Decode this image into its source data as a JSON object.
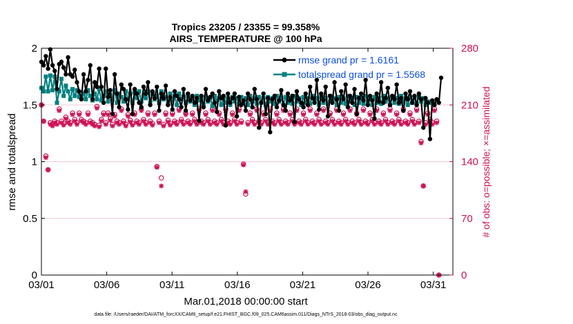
{
  "chart_data": {
    "type": "line",
    "title": "Tropics 23205 / 23355 = 99.358%",
    "subtitle": "AIRS_TEMPERATURE @ 100 hPa",
    "xlabel": "Mar.01,2018 00:00:00 start",
    "ylabel": "rmse and totalspread",
    "y2label": "# of obs: o=possible; ×=assimilated",
    "x_tick_labels": [
      "03/01",
      "03/06",
      "03/11",
      "03/16",
      "03/21",
      "03/26",
      "03/31"
    ],
    "x_ticks": [
      0,
      5,
      10,
      15,
      20,
      25,
      30
    ],
    "xlim": [
      0,
      31.5
    ],
    "ylim": [
      0,
      2
    ],
    "y_ticks": [
      "0",
      "0.5",
      "1",
      "1.5",
      "2"
    ],
    "y2lim": [
      0,
      280
    ],
    "y2_ticks": [
      "0",
      "70",
      "140",
      "210",
      "280"
    ],
    "footer": "data file: /Users/raeder/DAI/ATM_forcXX/CAM6_setup/f.e21.FHIST_BGC.f09_025.CAM6assim.011/Diags_NTrS_2018-03/obs_diag_output.nc",
    "colors": {
      "rmse": "#000000",
      "spread": "#008080",
      "obs": "#cc1155",
      "legend_text": "#0a4fe0"
    },
    "series": [
      {
        "name": "rmse grand pr = 1.6161",
        "axis": "left",
        "values": [
          1.88,
          1.85,
          1.93,
          1.82,
          1.99,
          1.85,
          1.8,
          1.64,
          1.86,
          1.88,
          1.83,
          1.77,
          1.92,
          1.77,
          1.75,
          1.81,
          1.7,
          1.62,
          1.55,
          1.77,
          1.62,
          1.72,
          1.85,
          1.55,
          1.7,
          1.66,
          1.82,
          1.66,
          1.52,
          1.82,
          1.57,
          1.63,
          1.42,
          1.77,
          1.6,
          1.48,
          1.68,
          1.64,
          1.55,
          1.46,
          1.68,
          1.42,
          1.64,
          1.6,
          1.52,
          1.48,
          1.66,
          1.6,
          1.7,
          1.5,
          1.62,
          1.56,
          1.66,
          1.45,
          1.6,
          1.56,
          1.67,
          1.5,
          1.57,
          1.46,
          1.62,
          1.58,
          1.55,
          1.48,
          1.64,
          1.45,
          1.6,
          1.54,
          1.58,
          1.52,
          1.56,
          1.36,
          1.58,
          1.48,
          1.64,
          1.54,
          1.57,
          1.6,
          1.52,
          1.44,
          1.62,
          1.56,
          1.58,
          1.32,
          1.6,
          1.52,
          1.56,
          1.6,
          1.4,
          1.57,
          1.5,
          1.54,
          1.45,
          1.6,
          1.55,
          1.48,
          1.64,
          1.55,
          1.3,
          1.52,
          1.6,
          1.42,
          1.56,
          1.26,
          1.55,
          1.58,
          1.48,
          1.54,
          1.63,
          1.5,
          1.45,
          1.6,
          1.54,
          1.58,
          1.35,
          1.62,
          1.55,
          1.52,
          1.48,
          1.6,
          1.5,
          1.66,
          1.56,
          1.52,
          1.72,
          1.46,
          1.6,
          1.54,
          1.66,
          1.4,
          1.58,
          1.52,
          1.7,
          1.55,
          1.45,
          1.62,
          1.55,
          1.68,
          1.48,
          1.58,
          1.52,
          1.64,
          1.42,
          1.56,
          1.6,
          1.54,
          1.72,
          1.5,
          1.58,
          1.54,
          1.38,
          1.6,
          1.53,
          1.7,
          1.52,
          1.56,
          1.65,
          1.5,
          1.58,
          1.55,
          1.68,
          1.52,
          1.56,
          1.45,
          1.6,
          1.55,
          1.62,
          1.52,
          1.58,
          1.5,
          1.6,
          1.55,
          1.3,
          1.56,
          1.52,
          1.2,
          1.54,
          1.5,
          1.55,
          1.52,
          1.74
        ]
      },
      {
        "name": "totalspread grand pr = 1.5568",
        "axis": "left",
        "values": [
          1.65,
          1.62,
          1.75,
          1.62,
          1.76,
          1.63,
          1.75,
          1.52,
          1.62,
          1.73,
          1.58,
          1.67,
          1.62,
          1.55,
          1.64,
          1.58,
          1.63,
          1.57,
          1.56,
          1.6,
          1.55,
          1.63,
          1.58,
          1.54,
          1.6,
          1.55,
          1.64,
          1.54,
          1.58,
          1.62,
          1.53,
          1.59,
          1.55,
          1.63,
          1.52,
          1.6,
          1.57,
          1.53,
          1.62,
          1.55,
          1.6,
          1.52,
          1.61,
          1.56,
          1.62,
          1.53,
          1.58,
          1.56,
          1.62,
          1.52,
          1.6,
          1.55,
          1.58,
          1.52,
          1.62,
          1.55,
          1.57,
          1.51,
          1.6,
          1.54,
          1.58,
          1.5,
          1.6,
          1.55,
          1.57,
          1.52,
          1.58,
          1.53,
          1.56,
          1.5,
          1.58,
          1.54,
          1.56,
          1.5,
          1.57,
          1.53,
          1.56,
          1.49,
          1.58,
          1.54,
          1.56,
          1.5,
          1.57,
          1.52,
          1.56,
          1.5,
          1.57,
          1.53,
          1.56,
          1.51,
          1.57,
          1.52,
          1.56,
          1.5,
          1.58,
          1.53,
          1.56,
          1.51,
          1.57,
          1.52,
          1.56,
          1.5,
          1.57,
          1.53,
          1.56,
          1.51,
          1.58,
          1.53,
          1.56,
          1.5,
          1.57,
          1.52,
          1.56,
          1.51,
          1.58,
          1.53,
          1.56,
          1.5,
          1.57,
          1.52,
          1.56,
          1.51,
          1.58,
          1.53,
          1.56,
          1.5,
          1.57,
          1.52,
          1.56,
          1.51,
          1.58,
          1.53,
          1.56,
          1.5,
          1.57,
          1.52,
          1.56,
          1.51,
          1.58,
          1.53,
          1.56,
          1.5,
          1.57,
          1.52,
          1.56,
          1.51,
          1.58,
          1.53,
          1.56,
          1.5,
          1.57,
          1.52,
          1.56,
          1.51,
          1.58,
          1.53,
          1.56,
          1.5,
          1.57,
          1.52,
          1.56,
          1.51,
          1.58,
          1.53,
          1.56,
          1.5,
          1.57,
          1.52,
          1.56,
          1.51,
          1.58,
          1.53,
          1.56,
          1.5,
          1.53,
          1.52,
          1.53,
          1.52
        ]
      }
    ],
    "obs_counts": {
      "axis": "right",
      "possible_name": "possible",
      "assimilated_name": "assimilated",
      "possible": [
        210,
        190,
        147,
        130,
        188,
        186,
        190,
        188,
        205,
        190,
        187,
        195,
        190,
        188,
        200,
        192,
        188,
        200,
        192,
        190,
        188,
        200,
        190,
        188,
        186,
        208,
        185,
        192,
        200,
        188,
        200,
        193,
        186,
        198,
        190,
        188,
        205,
        190,
        186,
        198,
        191,
        187,
        200,
        190,
        188,
        205,
        192,
        188,
        200,
        190,
        187,
        200,
        134,
        190,
        120,
        186,
        200,
        191,
        187,
        200,
        190,
        188,
        205,
        192,
        188,
        200,
        190,
        188,
        200,
        192,
        188,
        205,
        190,
        188,
        200,
        192,
        188,
        205,
        190,
        188,
        200,
        192,
        188,
        205,
        190,
        188,
        200,
        192,
        188,
        205,
        190,
        137,
        100,
        188,
        200,
        192,
        188,
        205,
        190,
        188,
        200,
        192,
        188,
        205,
        190,
        188,
        200,
        192,
        188,
        205,
        190,
        188,
        200,
        192,
        188,
        205,
        190,
        188,
        200,
        192,
        188,
        205,
        190,
        188,
        200,
        192,
        188,
        205,
        190,
        188,
        200,
        192,
        188,
        205,
        190,
        188,
        200,
        192,
        188,
        205,
        190,
        188,
        200,
        192,
        188,
        205,
        190,
        188,
        200,
        192,
        188,
        205,
        190,
        188,
        200,
        192,
        188,
        205,
        190,
        188,
        200,
        192,
        188,
        205,
        190,
        188,
        200,
        192,
        188,
        205,
        190,
        165,
        110,
        188,
        200,
        192,
        188,
        205,
        190,
        0
      ],
      "assimilated": [
        210,
        190,
        145,
        130,
        186,
        184,
        188,
        186,
        203,
        188,
        185,
        193,
        188,
        186,
        198,
        190,
        186,
        198,
        190,
        188,
        186,
        198,
        188,
        186,
        184,
        206,
        183,
        190,
        198,
        186,
        198,
        191,
        184,
        196,
        188,
        186,
        203,
        188,
        184,
        196,
        189,
        185,
        198,
        188,
        186,
        203,
        190,
        186,
        198,
        188,
        185,
        198,
        133,
        188,
        110,
        184,
        198,
        189,
        185,
        198,
        188,
        186,
        203,
        190,
        186,
        198,
        188,
        186,
        198,
        190,
        186,
        203,
        188,
        186,
        198,
        190,
        186,
        203,
        188,
        186,
        198,
        190,
        186,
        203,
        188,
        186,
        198,
        190,
        186,
        203,
        188,
        136,
        103,
        186,
        198,
        190,
        186,
        203,
        188,
        186,
        198,
        190,
        186,
        203,
        188,
        186,
        198,
        190,
        186,
        203,
        188,
        186,
        198,
        190,
        186,
        203,
        188,
        186,
        198,
        190,
        186,
        203,
        188,
        186,
        198,
        190,
        186,
        203,
        188,
        186,
        198,
        190,
        186,
        203,
        188,
        186,
        198,
        190,
        186,
        203,
        188,
        186,
        198,
        190,
        186,
        203,
        188,
        186,
        198,
        190,
        186,
        203,
        188,
        186,
        198,
        190,
        186,
        203,
        188,
        186,
        198,
        190,
        186,
        203,
        188,
        186,
        198,
        190,
        186,
        203,
        188,
        163,
        110,
        186,
        198,
        190,
        186,
        203,
        188,
        0
      ]
    }
  }
}
